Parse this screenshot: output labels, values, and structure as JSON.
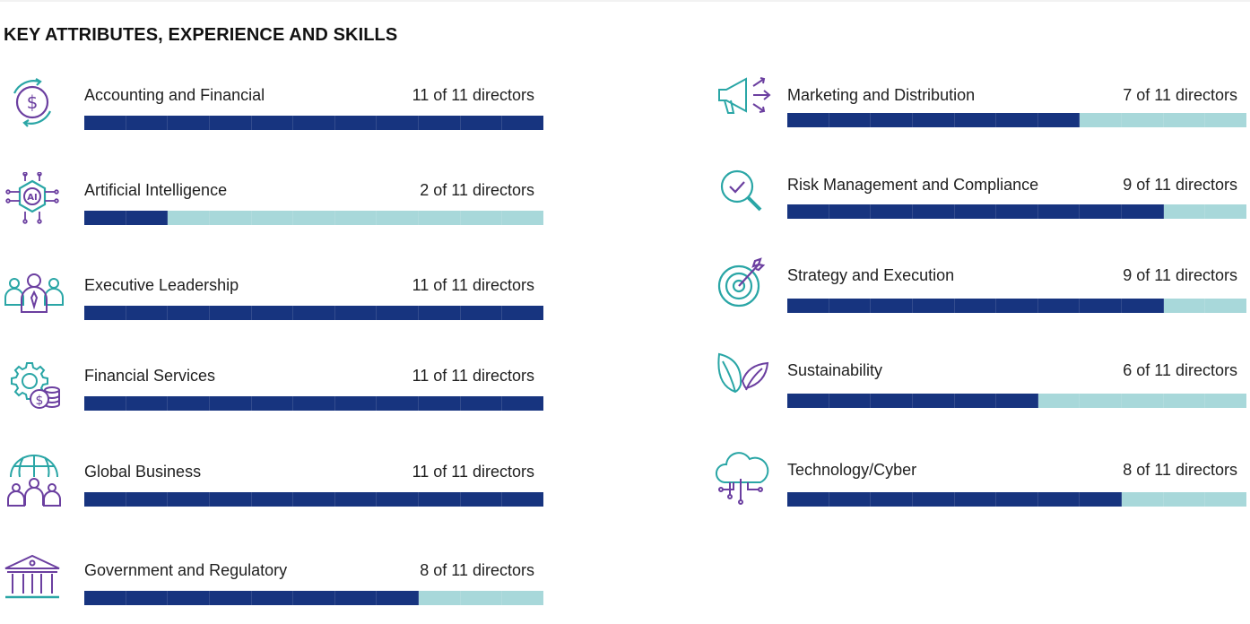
{
  "title": "KEY ATTRIBUTES, EXPERIENCE AND SKILLS",
  "colors": {
    "filled": "#17347f",
    "empty": "#a8d8da",
    "icon_teal": "#2aa6a6",
    "icon_purple": "#6b3fa0"
  },
  "chart_data": {
    "type": "bar",
    "title": "KEY ATTRIBUTES, EXPERIENCE AND SKILLS",
    "total": 11,
    "unit": "directors",
    "categories": [
      "Accounting and Financial",
      "Artificial Intelligence",
      "Executive Leadership",
      "Financial Services",
      "Global Business",
      "Government and Regulatory",
      "Marketing and Distribution",
      "Risk Management and Compliance",
      "Strategy and Execution",
      "Sustainability",
      "Technology/Cyber"
    ],
    "values": [
      11,
      2,
      11,
      11,
      11,
      8,
      7,
      9,
      9,
      6,
      8
    ],
    "ylim": [
      0,
      11
    ]
  },
  "skills": [
    {
      "label": "Accounting and Financial",
      "count_text": "11 of 11 directors",
      "icon": "dollar-cycle-icon"
    },
    {
      "label": "Artificial Intelligence",
      "count_text": "2 of 11 directors",
      "icon": "ai-chip-icon"
    },
    {
      "label": "Executive Leadership",
      "count_text": "11 of 11 directors",
      "icon": "executive-team-icon"
    },
    {
      "label": "Financial Services",
      "count_text": "11 of 11 directors",
      "icon": "gear-coins-icon"
    },
    {
      "label": "Global Business",
      "count_text": "11 of 11 directors",
      "icon": "globe-people-icon"
    },
    {
      "label": "Government and Regulatory",
      "count_text": "8 of 11 directors",
      "icon": "government-building-icon"
    },
    {
      "label": "Marketing and Distribution",
      "count_text": "7 of 11 directors",
      "icon": "megaphone-icon"
    },
    {
      "label": "Risk Management and Compliance",
      "count_text": "9 of 11 directors",
      "icon": "magnifier-check-icon"
    },
    {
      "label": "Strategy and Execution",
      "count_text": "9 of 11 directors",
      "icon": "target-arrow-icon"
    },
    {
      "label": "Sustainability",
      "count_text": "6 of 11 directors",
      "icon": "leaves-icon"
    },
    {
      "label": "Technology/Cyber",
      "count_text": "8 of 11 directors",
      "icon": "cloud-circuit-icon"
    }
  ]
}
